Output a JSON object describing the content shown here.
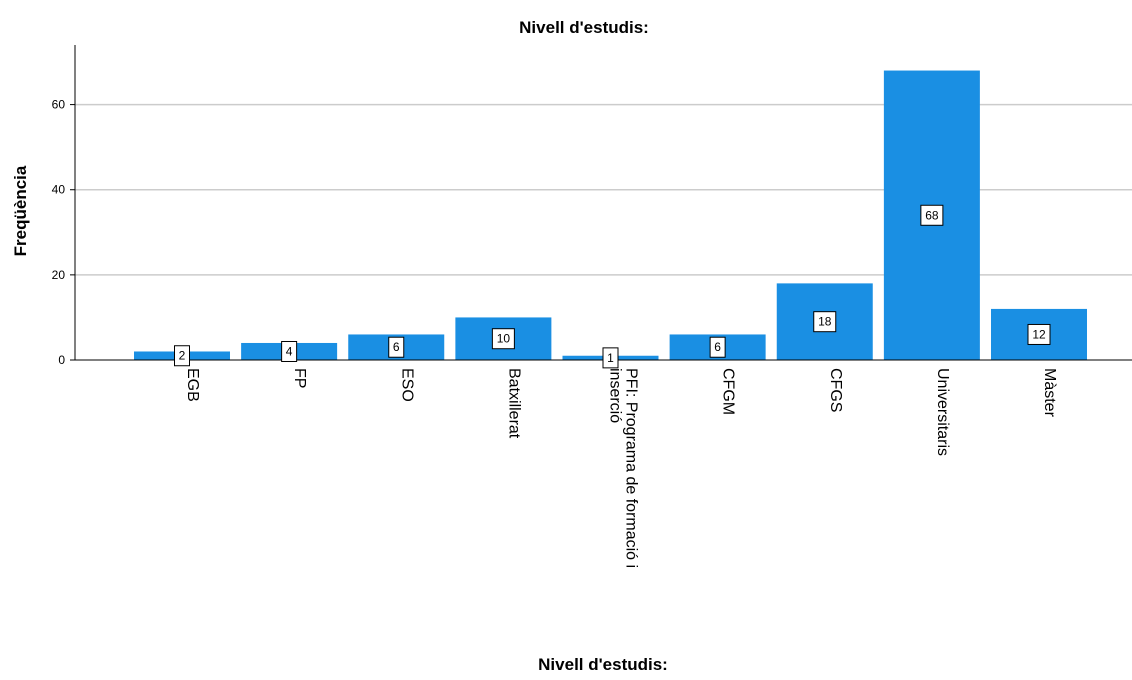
{
  "chart_data": {
    "type": "bar",
    "title": "Nivell d'estudis:",
    "xlabel": "Nivell d'estudis:",
    "ylabel": "Freqüència",
    "categories": [
      "EGB",
      "FP",
      "ESO",
      "Batxillerat",
      "PFI: Programa de formació i inserció",
      "CFGM",
      "CFGS",
      "Universitaris",
      "Màster"
    ],
    "values": [
      2,
      4,
      6,
      10,
      1,
      6,
      18,
      68,
      12
    ],
    "ylim": [
      0,
      74
    ],
    "yticks": [
      0,
      20,
      40,
      60
    ],
    "grid": true,
    "bar_color": "#1a8fe3",
    "gridline_color": "#cccccc"
  }
}
